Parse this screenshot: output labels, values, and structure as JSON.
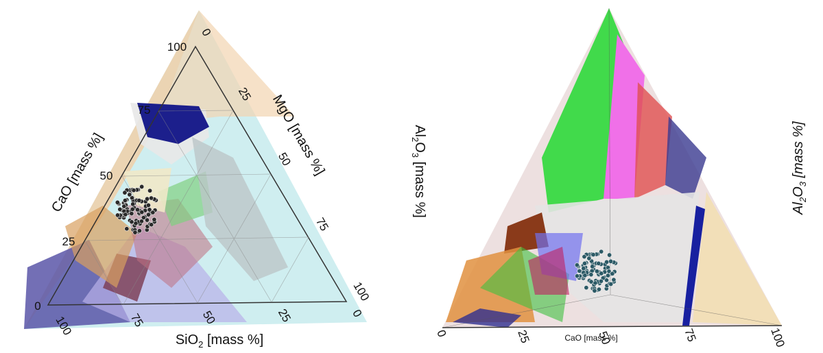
{
  "left": {
    "cao_label": "CaO [mass %]",
    "cao_ticks": [
      "100",
      "75",
      "50",
      "25",
      "0"
    ],
    "mgo_label": "MgO [mass %]",
    "mgo_ticks": [
      "0",
      "25",
      "50",
      "75",
      "100"
    ],
    "sio2_label": {
      "base": "SiO",
      "sub": "2",
      "unit": " [mass %]"
    },
    "sio2_ticks": [
      "100",
      "75",
      "50",
      "25",
      "0"
    ]
  },
  "right": {
    "al2o3_left": {
      "base": "Al",
      "sub": "2",
      "rest": "O",
      "sub2": "3",
      "unit": " [mass %]"
    },
    "al2o3_right": {
      "base": "Al",
      "sub": "2",
      "rest": "O",
      "sub2": "3",
      "unit": " [mass %]"
    },
    "cao_label": "CaO [mass %]",
    "cao_ticks": [
      "0",
      "25",
      "50",
      "75",
      "100"
    ]
  }
}
